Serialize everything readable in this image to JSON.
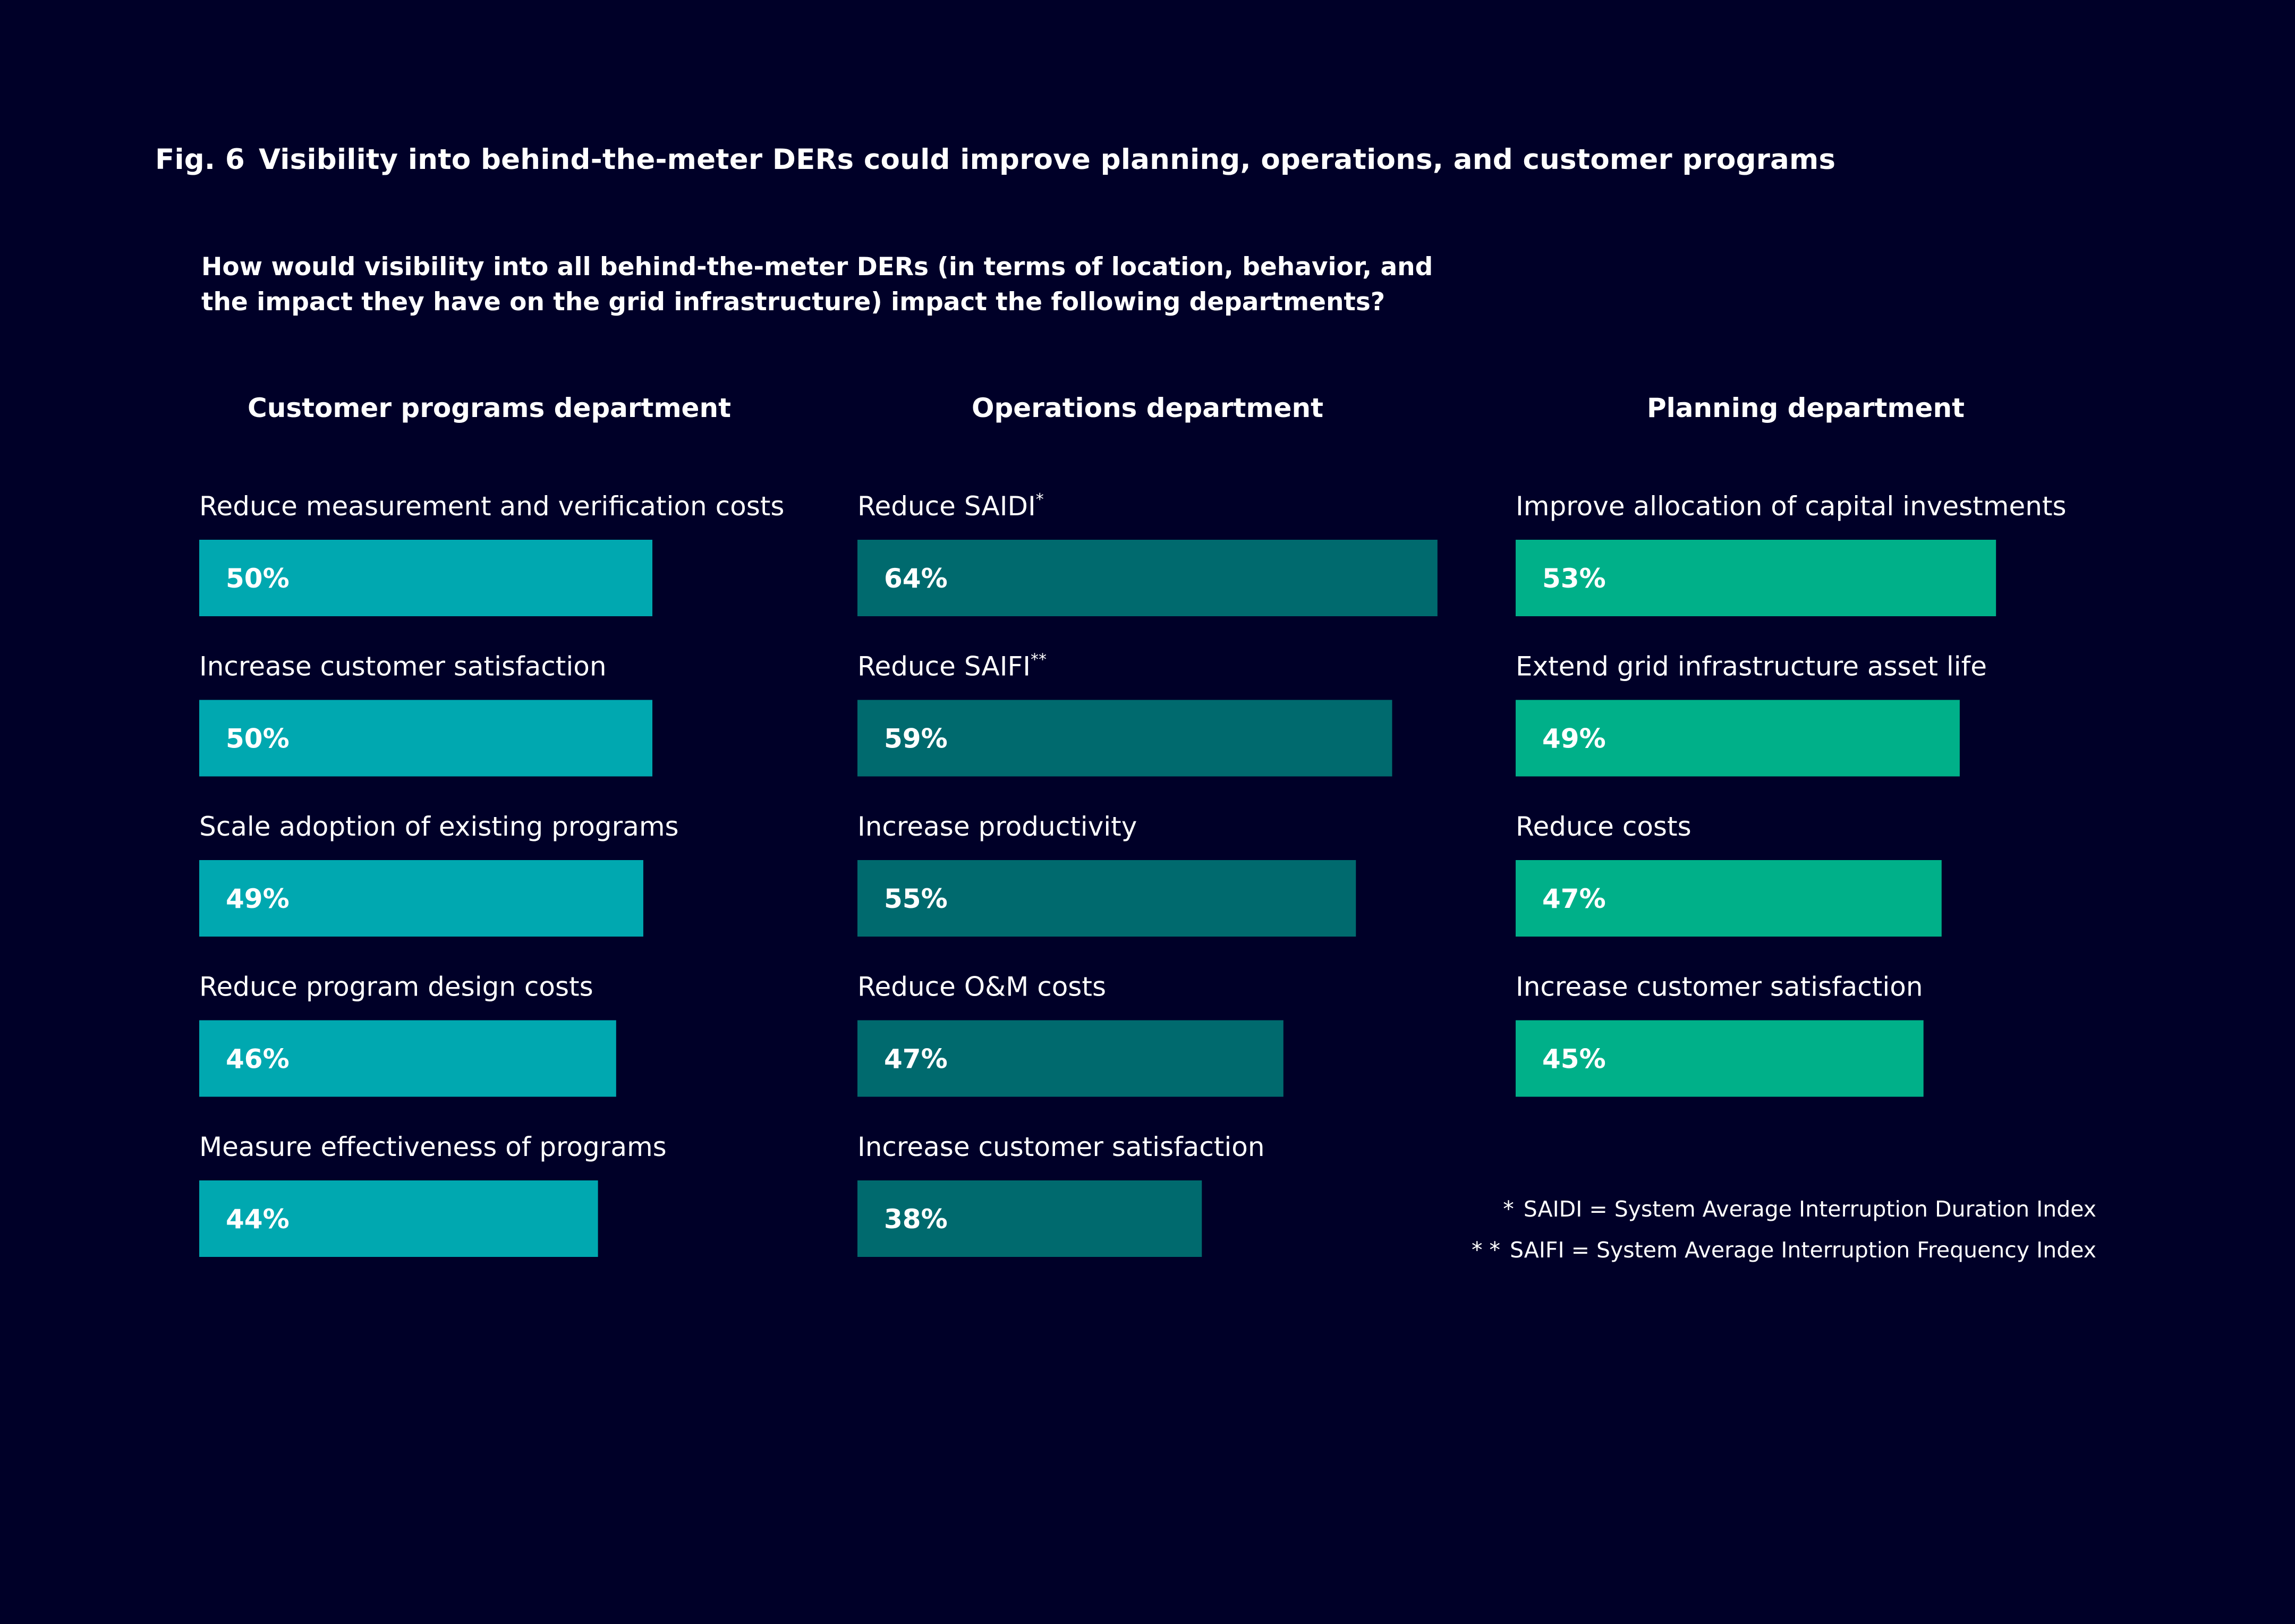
{
  "figure": {
    "number": "Fig. 6",
    "title": "Visibility into behind-the-meter DERs could improve planning, operations, and customer programs"
  },
  "question": {
    "line1": "How would visibility into all behind-the-meter DERs (in terms of location, behavior, and",
    "line2": "the impact they have on the grid infrastructure) impact the following departments?"
  },
  "chart_data": [
    {
      "type": "bar",
      "title": "Customer programs department",
      "color": "#00A8B0",
      "categories": [
        "Reduce measurement and verification costs",
        "Increase customer satisfaction",
        "Scale adoption of existing programs",
        "Reduce program design costs",
        "Measure effectiveness of programs"
      ],
      "category_marks": [
        "",
        "",
        "",
        "",
        ""
      ],
      "values": [
        50,
        50,
        49,
        46,
        44
      ],
      "value_labels": [
        "50%",
        "50%",
        "49%",
        "46%",
        "44%"
      ]
    },
    {
      "type": "bar",
      "title": "Operations department",
      "color": "#006A6E",
      "categories": [
        "Reduce SAIDI",
        "Reduce SAIFI",
        "Increase productivity",
        "Reduce O&M costs",
        "Increase customer satisfaction"
      ],
      "category_marks": [
        "*",
        "**",
        "",
        "",
        ""
      ],
      "values": [
        64,
        59,
        55,
        47,
        38
      ],
      "value_labels": [
        "64%",
        "59%",
        "55%",
        "47%",
        "38%"
      ]
    },
    {
      "type": "bar",
      "title": "Planning department",
      "color": "#00B089",
      "categories": [
        "Improve allocation of capital investments",
        "Extend grid infrastructure asset life",
        "Reduce costs",
        "Increase customer satisfaction"
      ],
      "category_marks": [
        "",
        "",
        "",
        ""
      ],
      "values": [
        53,
        49,
        47,
        45
      ],
      "value_labels": [
        "53%",
        "49%",
        "47%",
        "45%"
      ]
    }
  ],
  "footnotes": [
    {
      "mark": "*",
      "text": "SAIDI =  System Average Interruption Duration Index"
    },
    {
      "mark": "* *",
      "text": "SAIFI =  System Average Interruption Frequency Index"
    }
  ]
}
